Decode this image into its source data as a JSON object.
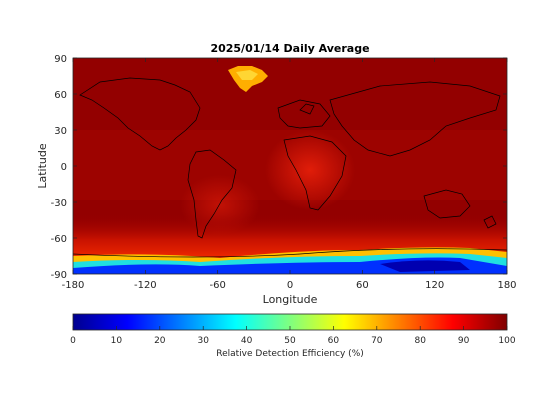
{
  "chart_data": {
    "type": "heatmap",
    "title": "2025/01/14 Daily Average",
    "xlabel": "Longitude",
    "ylabel": "Latitude",
    "xlim": [
      -180,
      180
    ],
    "ylim": [
      -90,
      90
    ],
    "x_ticks": [
      -180,
      -120,
      -60,
      0,
      60,
      120,
      180
    ],
    "y_ticks": [
      -90,
      -60,
      -30,
      0,
      30,
      60,
      90
    ],
    "grid": false,
    "colormap": "jet",
    "colorbar": {
      "label": "Relative Detection Efficiency (%)",
      "range": [
        0,
        100
      ],
      "ticks": [
        0,
        10,
        20,
        30,
        40,
        50,
        60,
        70,
        80,
        90,
        100
      ],
      "placement": "bottom"
    },
    "field_description": {
      "background_value": 97,
      "low_latitude_value": 92,
      "antarctic_edge_value": 55,
      "antarctic_interior_value": 10,
      "greenland_value": 75
    },
    "colors": {
      "jet_stops": [
        "#00008f",
        "#0000ff",
        "#00ffff",
        "#ffff00",
        "#ff0000",
        "#800000"
      ]
    }
  }
}
